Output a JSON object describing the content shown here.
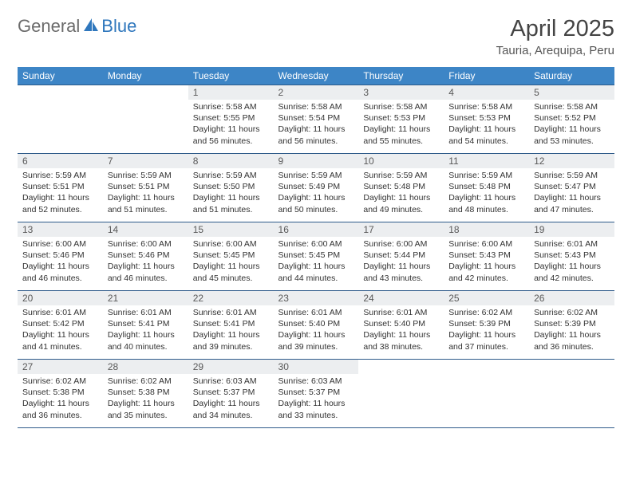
{
  "logo": {
    "text1": "General",
    "text2": "Blue"
  },
  "title": "April 2025",
  "location": "Tauria, Arequipa, Peru",
  "colors": {
    "header_bg": "#3d85c6",
    "header_text": "#ffffff",
    "daynum_bg": "#eceef0",
    "border": "#2f5b8a",
    "logo_gray": "#6b6b6b",
    "logo_blue": "#2f77bd"
  },
  "columns": [
    "Sunday",
    "Monday",
    "Tuesday",
    "Wednesday",
    "Thursday",
    "Friday",
    "Saturday"
  ],
  "weeks": [
    [
      null,
      null,
      {
        "n": "1",
        "sr": "5:58 AM",
        "ss": "5:55 PM",
        "dl": "11 hours and 56 minutes."
      },
      {
        "n": "2",
        "sr": "5:58 AM",
        "ss": "5:54 PM",
        "dl": "11 hours and 56 minutes."
      },
      {
        "n": "3",
        "sr": "5:58 AM",
        "ss": "5:53 PM",
        "dl": "11 hours and 55 minutes."
      },
      {
        "n": "4",
        "sr": "5:58 AM",
        "ss": "5:53 PM",
        "dl": "11 hours and 54 minutes."
      },
      {
        "n": "5",
        "sr": "5:58 AM",
        "ss": "5:52 PM",
        "dl": "11 hours and 53 minutes."
      }
    ],
    [
      {
        "n": "6",
        "sr": "5:59 AM",
        "ss": "5:51 PM",
        "dl": "11 hours and 52 minutes."
      },
      {
        "n": "7",
        "sr": "5:59 AM",
        "ss": "5:51 PM",
        "dl": "11 hours and 51 minutes."
      },
      {
        "n": "8",
        "sr": "5:59 AM",
        "ss": "5:50 PM",
        "dl": "11 hours and 51 minutes."
      },
      {
        "n": "9",
        "sr": "5:59 AM",
        "ss": "5:49 PM",
        "dl": "11 hours and 50 minutes."
      },
      {
        "n": "10",
        "sr": "5:59 AM",
        "ss": "5:48 PM",
        "dl": "11 hours and 49 minutes."
      },
      {
        "n": "11",
        "sr": "5:59 AM",
        "ss": "5:48 PM",
        "dl": "11 hours and 48 minutes."
      },
      {
        "n": "12",
        "sr": "5:59 AM",
        "ss": "5:47 PM",
        "dl": "11 hours and 47 minutes."
      }
    ],
    [
      {
        "n": "13",
        "sr": "6:00 AM",
        "ss": "5:46 PM",
        "dl": "11 hours and 46 minutes."
      },
      {
        "n": "14",
        "sr": "6:00 AM",
        "ss": "5:46 PM",
        "dl": "11 hours and 46 minutes."
      },
      {
        "n": "15",
        "sr": "6:00 AM",
        "ss": "5:45 PM",
        "dl": "11 hours and 45 minutes."
      },
      {
        "n": "16",
        "sr": "6:00 AM",
        "ss": "5:45 PM",
        "dl": "11 hours and 44 minutes."
      },
      {
        "n": "17",
        "sr": "6:00 AM",
        "ss": "5:44 PM",
        "dl": "11 hours and 43 minutes."
      },
      {
        "n": "18",
        "sr": "6:00 AM",
        "ss": "5:43 PM",
        "dl": "11 hours and 42 minutes."
      },
      {
        "n": "19",
        "sr": "6:01 AM",
        "ss": "5:43 PM",
        "dl": "11 hours and 42 minutes."
      }
    ],
    [
      {
        "n": "20",
        "sr": "6:01 AM",
        "ss": "5:42 PM",
        "dl": "11 hours and 41 minutes."
      },
      {
        "n": "21",
        "sr": "6:01 AM",
        "ss": "5:41 PM",
        "dl": "11 hours and 40 minutes."
      },
      {
        "n": "22",
        "sr": "6:01 AM",
        "ss": "5:41 PM",
        "dl": "11 hours and 39 minutes."
      },
      {
        "n": "23",
        "sr": "6:01 AM",
        "ss": "5:40 PM",
        "dl": "11 hours and 39 minutes."
      },
      {
        "n": "24",
        "sr": "6:01 AM",
        "ss": "5:40 PM",
        "dl": "11 hours and 38 minutes."
      },
      {
        "n": "25",
        "sr": "6:02 AM",
        "ss": "5:39 PM",
        "dl": "11 hours and 37 minutes."
      },
      {
        "n": "26",
        "sr": "6:02 AM",
        "ss": "5:39 PM",
        "dl": "11 hours and 36 minutes."
      }
    ],
    [
      {
        "n": "27",
        "sr": "6:02 AM",
        "ss": "5:38 PM",
        "dl": "11 hours and 36 minutes."
      },
      {
        "n": "28",
        "sr": "6:02 AM",
        "ss": "5:38 PM",
        "dl": "11 hours and 35 minutes."
      },
      {
        "n": "29",
        "sr": "6:03 AM",
        "ss": "5:37 PM",
        "dl": "11 hours and 34 minutes."
      },
      {
        "n": "30",
        "sr": "6:03 AM",
        "ss": "5:37 PM",
        "dl": "11 hours and 33 minutes."
      },
      null,
      null,
      null
    ]
  ],
  "labels": {
    "sunrise": "Sunrise:",
    "sunset": "Sunset:",
    "daylight": "Daylight:"
  }
}
